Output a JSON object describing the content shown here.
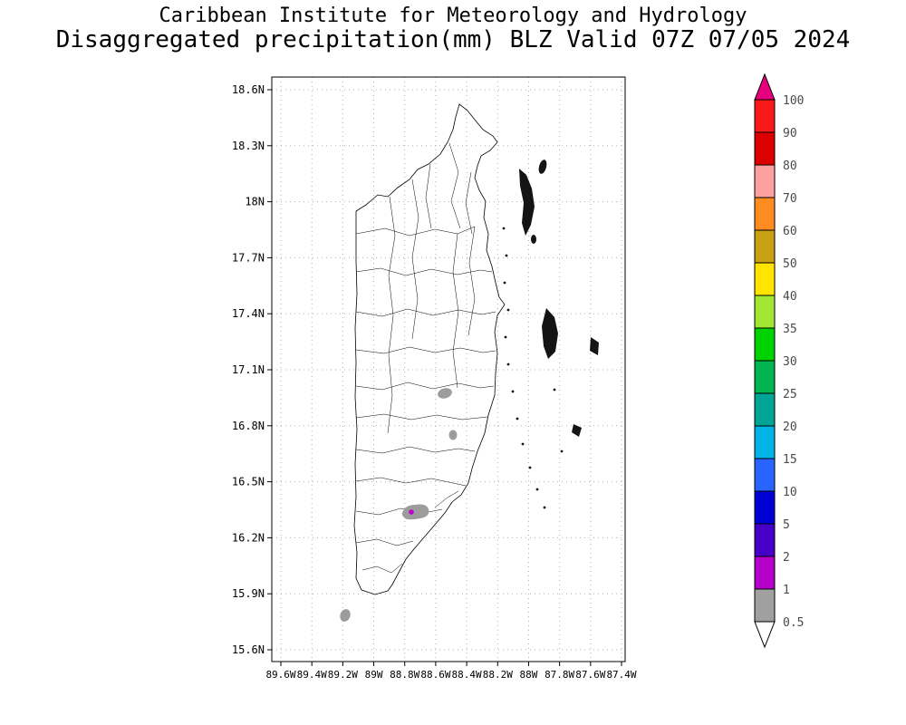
{
  "title": {
    "line1": "Caribbean Institute for Meteorology and Hydrology",
    "line2": "Disaggregated precipitation(mm) BLZ Valid 07Z 07/05 2024"
  },
  "chart_data": {
    "type": "map-contour",
    "title": "Disaggregated precipitation(mm) BLZ Valid 07Z 07/05 2024",
    "subtitle": "Caribbean Institute for Meteorology and Hydrology",
    "region": "Belize (BLZ)",
    "variable": "Disaggregated precipitation",
    "unit": "mm",
    "valid_time": "07Z 07/05 2024",
    "grid": "dotted graticule at labeled ticks",
    "legend_position": "right colorbar",
    "lat_ticks": [
      "18.6N",
      "18.3N",
      "18N",
      "17.7N",
      "17.4N",
      "17.1N",
      "16.8N",
      "16.5N",
      "16.2N",
      "15.9N",
      "15.6N"
    ],
    "lon_ticks": [
      "89.6W",
      "89.4W",
      "89.2W",
      "89W",
      "88.8W",
      "88.6W",
      "88.4W",
      "88.2W",
      "88W",
      "87.8W",
      "87.6W",
      "87.4W"
    ],
    "lat_range": [
      "15.6N",
      "18.6N"
    ],
    "lon_range": [
      "89.6W",
      "87.4W"
    ],
    "colorbar": {
      "unit": "mm",
      "labels": [
        "100",
        "90",
        "80",
        "70",
        "60",
        "50",
        "40",
        "35",
        "30",
        "25",
        "20",
        "15",
        "10",
        "5",
        "2",
        "1",
        "0.5"
      ],
      "segment_colors_top_to_bottom": [
        "#fa1919",
        "#dc0000",
        "#ffa0a0",
        "#ff8c1e",
        "#c8a014",
        "#ffe400",
        "#a0e632",
        "#00d200",
        "#00b450",
        "#00a596",
        "#00b4e6",
        "#2864ff",
        "#0000d2",
        "#4600c8",
        "#b400c8",
        "#a0a0a0"
      ],
      "above_max_color": "#e6007e",
      "below_min_color": "#ffffff"
    },
    "precip_features": [
      {
        "lat": "17.0N",
        "lon": "88.55W",
        "value_mm": "0.5-1"
      },
      {
        "lat": "16.75N",
        "lon": "88.5W",
        "value_mm": "0.5-1"
      },
      {
        "lat": "16.35N",
        "lon": "88.7W",
        "value_mm": "0.5-1 with small 1-2 core"
      },
      {
        "lat": "15.8N",
        "lon": "89.2W",
        "value_mm": "0.5-1"
      }
    ]
  }
}
